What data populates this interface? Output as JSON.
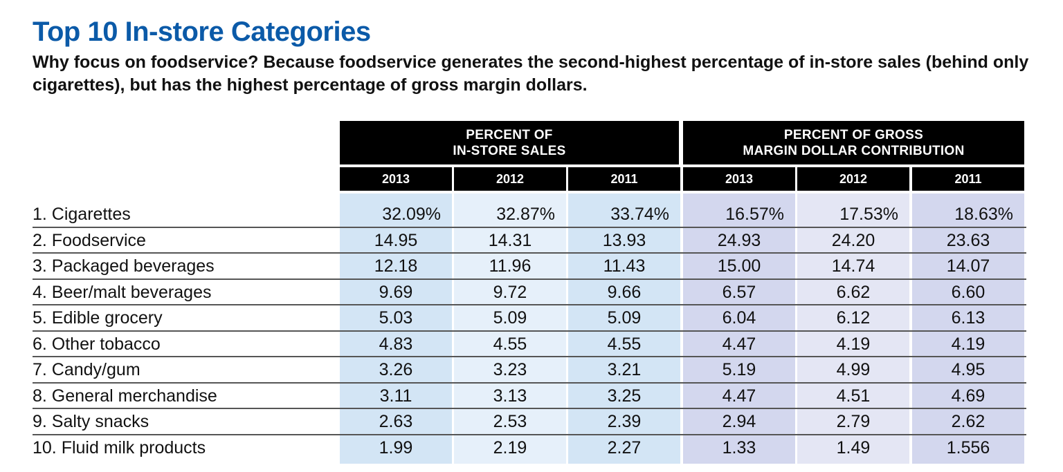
{
  "header": {
    "title": "Top 10 In-store Categories",
    "subtitle": "Why focus on foodservice? Because foodservice generates the second-highest percentage of in-store sales (behind only cigarettes), but has the highest percentage of gross margin dollars."
  },
  "table": {
    "groups": [
      {
        "label_line1": "PERCENT OF",
        "label_line2": "IN-STORE SALES"
      },
      {
        "label_line1": "PERCENT OF GROSS",
        "label_line2": "MARGIN DOLLAR CONTRIBUTION"
      }
    ],
    "years": [
      "2013",
      "2012",
      "2011",
      "2013",
      "2012",
      "2011"
    ],
    "rows": [
      {
        "label": "1. Cigarettes",
        "values": [
          "32.09%",
          "32.87%",
          "33.74%",
          "16.57%",
          "17.53%",
          "18.63%"
        ]
      },
      {
        "label": "2. Foodservice",
        "values": [
          "14.95",
          "14.31",
          "13.93",
          "24.93",
          "24.20",
          "23.63"
        ]
      },
      {
        "label": "3. Packaged beverages",
        "values": [
          "12.18",
          "11.96",
          "11.43",
          "15.00",
          "14.74",
          "14.07"
        ]
      },
      {
        "label": "4. Beer/malt beverages",
        "values": [
          "9.69",
          "9.72",
          "9.66",
          "6.57",
          "6.62",
          "6.60"
        ]
      },
      {
        "label": "5. Edible grocery",
        "values": [
          "5.03",
          "5.09",
          "5.09",
          "6.04",
          "6.12",
          "6.13"
        ]
      },
      {
        "label": "6. Other tobacco",
        "values": [
          "4.83",
          "4.55",
          "4.55",
          "4.47",
          "4.19",
          "4.19"
        ]
      },
      {
        "label": "7. Candy/gum",
        "values": [
          "3.26",
          "3.23",
          "3.21",
          "5.19",
          "4.99",
          "4.95"
        ]
      },
      {
        "label": "8. General merchandise",
        "values": [
          "3.11",
          "3.13",
          "3.25",
          "4.47",
          "4.51",
          "4.69"
        ]
      },
      {
        "label": "9. Salty snacks",
        "values": [
          "2.63",
          "2.53",
          "2.39",
          "2.94",
          "2.79",
          "2.62"
        ]
      },
      {
        "label": "10. Fluid milk products",
        "values": [
          "1.99",
          "2.19",
          "2.27",
          "1.33",
          "1.49",
          "1.556"
        ]
      }
    ]
  },
  "colors": {
    "title": "#0b5aa8",
    "header_bg": "#000000",
    "sales_col_dark": "#d3e5f5",
    "sales_col_light": "#e6f0fa",
    "margin_col_dark": "#d3d7ee",
    "margin_col_light": "#e4e6f4"
  },
  "chart_data": {
    "type": "table",
    "title": "Top 10 In-store Categories",
    "subtitle": "Why focus on foodservice? Because foodservice generates the second-highest percentage of in-store sales (behind only cigarettes), but has the highest percentage of gross margin dollars.",
    "categories": [
      "Cigarettes",
      "Foodservice",
      "Packaged beverages",
      "Beer/malt beverages",
      "Edible grocery",
      "Other tobacco",
      "Candy/gum",
      "General merchandise",
      "Salty snacks",
      "Fluid milk products"
    ],
    "series": [
      {
        "name": "Percent of in-store sales 2013",
        "values": [
          32.09,
          14.95,
          12.18,
          9.69,
          5.03,
          4.83,
          3.26,
          3.11,
          2.63,
          1.99
        ]
      },
      {
        "name": "Percent of in-store sales 2012",
        "values": [
          32.87,
          14.31,
          11.96,
          9.72,
          5.09,
          4.55,
          3.23,
          3.13,
          2.53,
          2.19
        ]
      },
      {
        "name": "Percent of in-store sales 2011",
        "values": [
          33.74,
          13.93,
          11.43,
          9.66,
          5.09,
          4.55,
          3.21,
          3.25,
          2.39,
          2.27
        ]
      },
      {
        "name": "Percent of gross margin dollar contribution 2013",
        "values": [
          16.57,
          24.93,
          15.0,
          6.57,
          6.04,
          4.47,
          5.19,
          4.47,
          2.94,
          1.33
        ]
      },
      {
        "name": "Percent of gross margin dollar contribution 2012",
        "values": [
          17.53,
          24.2,
          14.74,
          6.62,
          6.12,
          4.19,
          4.99,
          4.51,
          2.79,
          1.49
        ]
      },
      {
        "name": "Percent of gross margin dollar contribution 2011",
        "values": [
          18.63,
          23.63,
          14.07,
          6.6,
          6.13,
          4.19,
          4.95,
          4.69,
          2.62,
          1.556
        ]
      }
    ],
    "xlabel": "",
    "ylabel": "Percent"
  }
}
